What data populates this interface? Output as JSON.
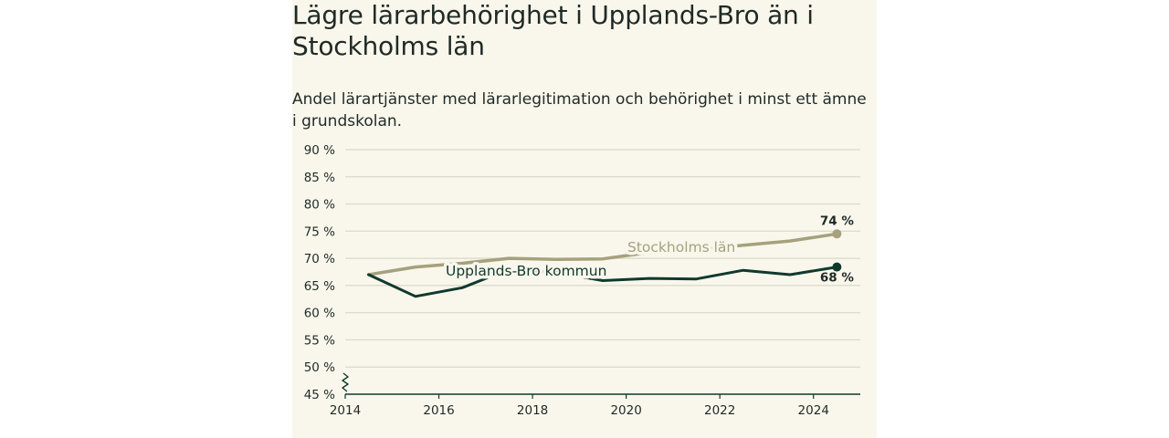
{
  "title": "Lägre lärarbehörighet i Upplands-Bro än i Stockholms län",
  "subtitle": "Andel lärartjänster med lärarlegitimation och behörighet i minst ett ämne i grundskolan.",
  "colors": {
    "background": "#f9f7ec",
    "stockholm": "#a6a17d",
    "upplands_bro": "#10392e",
    "grid": "#d9d8c6",
    "axis": "#10392e",
    "text": "#1f2a26"
  },
  "chart_data": {
    "type": "line",
    "xlim": [
      2014,
      2025
    ],
    "ylim": [
      45,
      90
    ],
    "y_ticks": [
      45,
      50,
      55,
      60,
      65,
      70,
      75,
      80,
      85,
      90
    ],
    "y_tick_labels": [
      "45 %",
      "50 %",
      "55 %",
      "60 %",
      "65 %",
      "70 %",
      "75 %",
      "80 %",
      "85 %",
      "90 %"
    ],
    "x_ticks": [
      2014,
      2016,
      2018,
      2020,
      2022,
      2024
    ],
    "x_tick_labels": [
      "2014",
      "2016",
      "2018",
      "2020",
      "2022",
      "2024"
    ],
    "y_axis_break": true,
    "grid": true,
    "series": [
      {
        "name": "Stockholms län",
        "color": "#a6a17d",
        "x": [
          2014.5,
          2015.5,
          2016.5,
          2017.5,
          2018.5,
          2019.5,
          2020.5,
          2021.5,
          2022.5,
          2023.5,
          2024.5
        ],
        "y": [
          67.0,
          68.4,
          69.1,
          70.0,
          69.8,
          69.9,
          71.1,
          71.5,
          72.4,
          73.2,
          74.5
        ],
        "end_label": "74 %"
      },
      {
        "name": "Upplands-Bro kommun",
        "color": "#10392e",
        "x": [
          2014.5,
          2015.5,
          2016.5,
          2017.5,
          2018.5,
          2019.5,
          2020.5,
          2021.5,
          2022.5,
          2023.5,
          2024.5
        ],
        "y": [
          67.0,
          63.0,
          64.6,
          68.0,
          67.4,
          65.9,
          66.3,
          66.2,
          67.8,
          67.0,
          68.4
        ],
        "end_label": "68 %"
      }
    ]
  }
}
